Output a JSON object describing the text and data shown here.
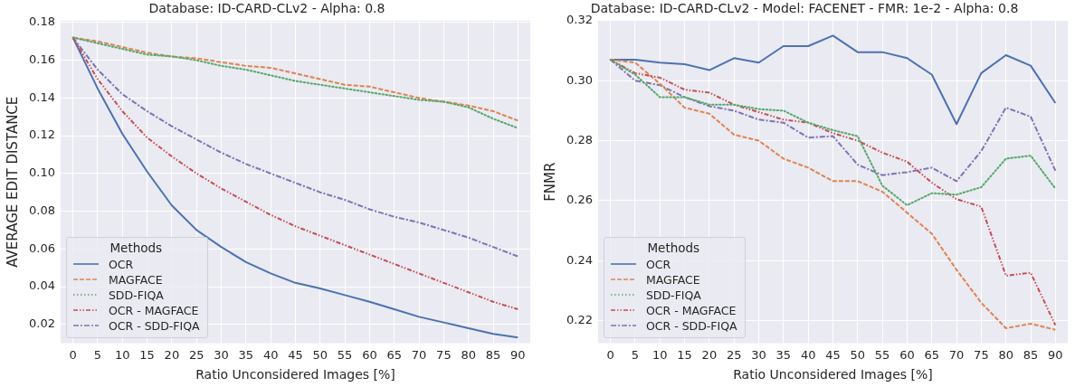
{
  "chart_data": [
    {
      "type": "line",
      "title": "Database: ID-CARD-CLv2 - Alpha: 0.8",
      "xlabel": "Ratio Unconsidered Images [%]",
      "ylabel": "AVERAGE EDIT DISTANCE",
      "legend_title": "Methods",
      "categories": [
        "0",
        "5",
        "10",
        "15",
        "20",
        "25",
        "30",
        "35",
        "40",
        "45",
        "50",
        "55",
        "60",
        "65",
        "70",
        "75",
        "80",
        "85",
        "90"
      ],
      "ylim": [
        0.01,
        0.181
      ],
      "yticks": [
        {
          "value": 0.02,
          "label": "0.02"
        },
        {
          "value": 0.04,
          "label": "0.04"
        },
        {
          "value": 0.06,
          "label": "0.06"
        },
        {
          "value": 0.08,
          "label": "0.08"
        },
        {
          "value": 0.1,
          "label": "0.10"
        },
        {
          "value": 0.12,
          "label": "0.12"
        },
        {
          "value": 0.14,
          "label": "0.14"
        },
        {
          "value": 0.16,
          "label": "0.16"
        },
        {
          "value": 0.18,
          "label": "0.18"
        }
      ],
      "grid": true,
      "legend": "bottom left",
      "marker": "none",
      "series": [
        {
          "name": "OCR",
          "color": "#4c72b0",
          "line_style": "solid",
          "values": [
            0.172,
            0.145,
            0.121,
            0.101,
            0.083,
            0.07,
            0.061,
            0.053,
            0.047,
            0.042,
            0.039,
            0.0355,
            0.032,
            0.028,
            0.024,
            0.021,
            0.018,
            0.015,
            0.013
          ]
        },
        {
          "name": "MAGFACE",
          "color": "#dd8452",
          "line_style": "dashed",
          "values": [
            0.172,
            0.17,
            0.167,
            0.164,
            0.162,
            0.161,
            0.159,
            0.157,
            0.156,
            0.153,
            0.15,
            0.147,
            0.146,
            0.143,
            0.14,
            0.138,
            0.136,
            0.133,
            0.128
          ]
        },
        {
          "name": "SDD-FIQA",
          "color": "#55a868",
          "line_style": "dotted",
          "values": [
            0.172,
            0.169,
            0.166,
            0.163,
            0.162,
            0.16,
            0.157,
            0.155,
            0.152,
            0.149,
            0.147,
            0.145,
            0.143,
            0.141,
            0.139,
            0.138,
            0.135,
            0.129,
            0.124
          ]
        },
        {
          "name": "OCR - MAGFACE",
          "color": "#c44e52",
          "line_style": "dashdotdot",
          "values": [
            0.172,
            0.15,
            0.133,
            0.119,
            0.109,
            0.1,
            0.092,
            0.085,
            0.078,
            0.072,
            0.067,
            0.062,
            0.057,
            0.052,
            0.047,
            0.042,
            0.037,
            0.032,
            0.028
          ]
        },
        {
          "name": "OCR - SDD-FIQA",
          "color": "#8172b3",
          "line_style": "dashdot",
          "values": [
            0.172,
            0.155,
            0.142,
            0.133,
            0.125,
            0.118,
            0.111,
            0.105,
            0.1,
            0.095,
            0.09,
            0.086,
            0.081,
            0.077,
            0.074,
            0.07,
            0.066,
            0.061,
            0.056
          ]
        }
      ]
    },
    {
      "type": "line",
      "title": "Database: ID-CARD-CLv2 - Model: FACENET - FMR: 1e-2 - Alpha: 0.8",
      "xlabel": "Ratio Unconsidered Images [%]",
      "ylabel": "FNMR",
      "legend_title": "Methods",
      "categories": [
        "0",
        "5",
        "10",
        "15",
        "20",
        "25",
        "30",
        "35",
        "40",
        "45",
        "50",
        "55",
        "60",
        "65",
        "70",
        "75",
        "80",
        "85",
        "90"
      ],
      "ylim": [
        0.2125,
        0.32
      ],
      "yticks": [
        {
          "value": 0.22,
          "label": "0.22"
        },
        {
          "value": 0.24,
          "label": "0.24"
        },
        {
          "value": 0.26,
          "label": "0.26"
        },
        {
          "value": 0.28,
          "label": "0.28"
        },
        {
          "value": 0.3,
          "label": "0.30"
        },
        {
          "value": 0.32,
          "label": "0.32"
        }
      ],
      "grid": true,
      "legend": "bottom left",
      "marker": "none",
      "series": [
        {
          "name": "OCR",
          "color": "#4c72b0",
          "line_style": "solid",
          "values": [
            0.307,
            0.307,
            0.306,
            0.3055,
            0.3035,
            0.3075,
            0.306,
            0.3115,
            0.3115,
            0.315,
            0.3095,
            0.3095,
            0.3075,
            0.302,
            0.2855,
            0.3025,
            0.3085,
            0.305,
            0.2925
          ]
        },
        {
          "name": "MAGFACE",
          "color": "#dd8452",
          "line_style": "dashed",
          "values": [
            0.307,
            0.306,
            0.299,
            0.291,
            0.289,
            0.282,
            0.28,
            0.274,
            0.271,
            0.2665,
            0.2665,
            0.263,
            0.256,
            0.249,
            0.237,
            0.226,
            0.2175,
            0.219,
            0.217
          ]
        },
        {
          "name": "SDD-FIQA",
          "color": "#55a868",
          "line_style": "dotted",
          "values": [
            0.307,
            0.302,
            0.2945,
            0.2945,
            0.292,
            0.292,
            0.2905,
            0.29,
            0.286,
            0.2835,
            0.2815,
            0.265,
            0.2585,
            0.2625,
            0.262,
            0.2645,
            0.274,
            0.275,
            0.264
          ]
        },
        {
          "name": "OCR - MAGFACE",
          "color": "#c44e52",
          "line_style": "dashdotdot",
          "values": [
            0.307,
            0.3025,
            0.301,
            0.297,
            0.296,
            0.292,
            0.2895,
            0.287,
            0.286,
            0.2825,
            0.28,
            0.276,
            0.273,
            0.266,
            0.2605,
            0.258,
            0.235,
            0.236,
            0.2185
          ]
        },
        {
          "name": "OCR - SDD-FIQA",
          "color": "#8172b3",
          "line_style": "dashdot",
          "values": [
            0.307,
            0.3,
            0.2985,
            0.2945,
            0.2915,
            0.29,
            0.287,
            0.286,
            0.281,
            0.2815,
            0.272,
            0.2685,
            0.2695,
            0.271,
            0.2665,
            0.2765,
            0.291,
            0.288,
            0.27
          ]
        }
      ]
    }
  ]
}
